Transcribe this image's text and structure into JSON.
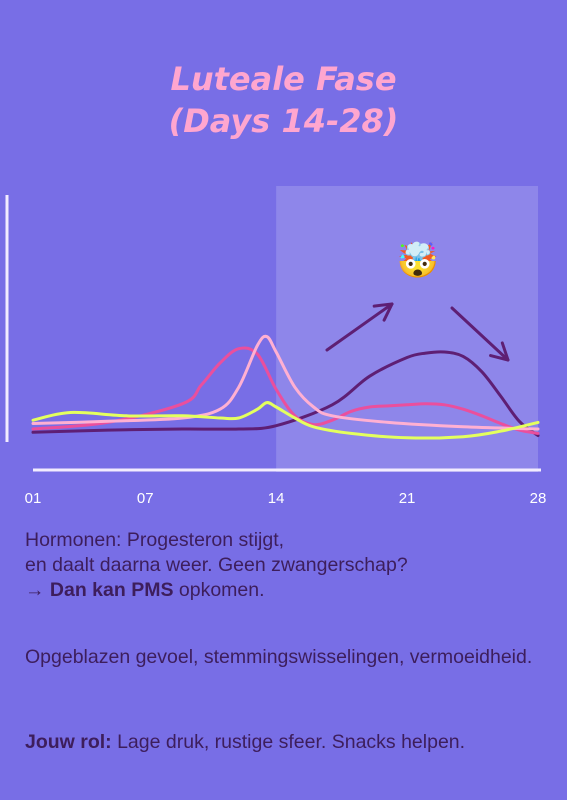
{
  "header": {
    "title_line1": "Luteale Fase",
    "title_line2": "(Days 14-28)"
  },
  "chart_data": {
    "type": "line",
    "x_ticks": [
      "01",
      "07",
      "14",
      "21",
      "28"
    ],
    "xlim": [
      1,
      28
    ],
    "highlight_range": [
      14,
      28
    ],
    "emoji": "🤯",
    "series": [
      {
        "color": "#5e1f74",
        "x": [
          1,
          5,
          9,
          12,
          14,
          17,
          19,
          21,
          22,
          23,
          24,
          25,
          26,
          27,
          28
        ],
        "y": [
          0.07,
          0.09,
          0.1,
          0.1,
          0.13,
          0.32,
          0.58,
          0.75,
          0.79,
          0.8,
          0.76,
          0.62,
          0.4,
          0.17,
          0.04
        ]
      },
      {
        "color": "#ea4f9d",
        "x": [
          1,
          5,
          9,
          10,
          11,
          12,
          13,
          14,
          15,
          16,
          17,
          18,
          19,
          20,
          21,
          22,
          23,
          24,
          25,
          26,
          27,
          28
        ],
        "y": [
          0.1,
          0.16,
          0.33,
          0.5,
          0.7,
          0.83,
          0.78,
          0.46,
          0.22,
          0.14,
          0.18,
          0.26,
          0.3,
          0.31,
          0.32,
          0.33,
          0.32,
          0.28,
          0.22,
          0.15,
          0.09,
          0.06
        ]
      },
      {
        "color": "#ffb0d2",
        "x": [
          1,
          5,
          9,
          11,
          12,
          13,
          13.5,
          14,
          15,
          16,
          17,
          20,
          24,
          28
        ],
        "y": [
          0.15,
          0.17,
          0.2,
          0.28,
          0.48,
          0.86,
          0.94,
          0.8,
          0.48,
          0.3,
          0.22,
          0.16,
          0.12,
          0.1
        ]
      },
      {
        "color": "#e4ff5e",
        "x": [
          1,
          3,
          6,
          9,
          11,
          12,
          13,
          13.5,
          14,
          15,
          16,
          18,
          21,
          24,
          26,
          28
        ],
        "y": [
          0.18,
          0.25,
          0.22,
          0.22,
          0.2,
          0.2,
          0.28,
          0.34,
          0.3,
          0.2,
          0.12,
          0.06,
          0.02,
          0.03,
          0.08,
          0.16
        ]
      }
    ]
  },
  "info": {
    "hormones_line1": "Hormonen: Progesteron stijgt,",
    "hormones_line2": "en daalt daarna weer. Geen zwangerschap?",
    "arrow": "→ ",
    "pms_bold": "Dan kan PMS",
    "pms_rest": " opkomen.",
    "symptoms": "Opgeblazen gevoel, stemmingswisselingen, vermoeidheid.",
    "role_label": "Jouw rol:",
    "role_text": " Lage druk, rustige sfeer. Snacks helpen."
  }
}
